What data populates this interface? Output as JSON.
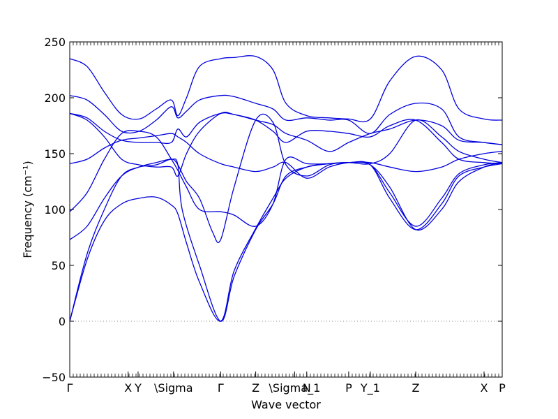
{
  "chart_data": {
    "type": "line",
    "title": "",
    "xlabel": "Wave vector",
    "ylabel": "Frequency (cm⁻¹)",
    "ylim": [
      -50,
      250
    ],
    "yticks": [
      -50,
      0,
      50,
      100,
      150,
      200,
      250
    ],
    "xlim": [
      0,
      1
    ],
    "grid": false,
    "legend": "none",
    "line_color": "#0000dd",
    "zero_line_color": "#888888",
    "xticks": [
      {
        "label": "Γ",
        "x": 0.0
      },
      {
        "label": "X",
        "x": 0.135
      },
      {
        "label": "Y",
        "x": 0.158
      },
      {
        "label": "\\Sigma",
        "x": 0.24
      },
      {
        "label": "Γ",
        "x": 0.349
      },
      {
        "label": "Z",
        "x": 0.43
      },
      {
        "label": "\\Sigma_1",
        "x": 0.52
      },
      {
        "label": "N",
        "x": 0.548
      },
      {
        "label": "P",
        "x": 0.645
      },
      {
        "label": "Y_1",
        "x": 0.695
      },
      {
        "label": "Z",
        "x": 0.8
      },
      {
        "label": "X",
        "x": 0.958
      },
      {
        "label": "P",
        "x": 1.0
      }
    ],
    "series": [
      {
        "x": [
          0,
          0.04,
          0.08,
          0.12,
          0.16,
          0.2,
          0.235,
          0.25,
          0.26,
          0.3,
          0.349,
          0.38,
          0.43,
          0.47,
          0.5,
          0.548,
          0.6,
          0.645,
          0.695,
          0.74,
          0.8,
          0.86,
          0.9,
          0.958,
          1.0
        ],
        "y": [
          0,
          60,
          100,
          130,
          138,
          142,
          145,
          140,
          100,
          50,
          0,
          40,
          82,
          105,
          130,
          138,
          141,
          142,
          140,
          110,
          82,
          105,
          130,
          138,
          141
        ]
      },
      {
        "x": [
          0,
          0.04,
          0.08,
          0.12,
          0.16,
          0.2,
          0.235,
          0.25,
          0.27,
          0.3,
          0.349,
          0.38,
          0.43,
          0.47,
          0.5,
          0.548,
          0.6,
          0.645,
          0.695,
          0.74,
          0.8,
          0.86,
          0.9,
          0.958,
          1.0
        ],
        "y": [
          0,
          55,
          90,
          105,
          110,
          111,
          104,
          96,
          70,
          35,
          0,
          45,
          83,
          110,
          128,
          138,
          141,
          142,
          140,
          115,
          85,
          110,
          132,
          140,
          142
        ]
      },
      {
        "x": [
          0,
          0.04,
          0.08,
          0.12,
          0.16,
          0.2,
          0.235,
          0.25,
          0.27,
          0.3,
          0.33,
          0.349,
          0.38,
          0.43,
          0.47,
          0.5,
          0.548,
          0.6,
          0.645,
          0.695,
          0.74,
          0.8,
          0.86,
          0.9,
          0.958,
          1.0
        ],
        "y": [
          73,
          85,
          110,
          130,
          138,
          140,
          145,
          140,
          125,
          110,
          80,
          73,
          120,
          180,
          178,
          140,
          130,
          140,
          142,
          140,
          120,
          82,
          100,
          125,
          138,
          142
        ]
      },
      {
        "x": [
          0,
          0.04,
          0.08,
          0.12,
          0.16,
          0.2,
          0.235,
          0.25,
          0.27,
          0.3,
          0.349,
          0.38,
          0.43,
          0.47,
          0.5,
          0.548,
          0.6,
          0.645,
          0.695,
          0.74,
          0.8,
          0.86,
          0.9,
          0.958,
          1.0
        ],
        "y": [
          98,
          115,
          145,
          168,
          170,
          165,
          145,
          135,
          120,
          100,
          98,
          95,
          85,
          105,
          145,
          141,
          141,
          142,
          141,
          150,
          180,
          165,
          152,
          145,
          142
        ]
      },
      {
        "x": [
          0,
          0.04,
          0.08,
          0.12,
          0.16,
          0.2,
          0.235,
          0.25,
          0.27,
          0.3,
          0.349,
          0.38,
          0.43,
          0.47,
          0.5,
          0.548,
          0.6,
          0.645,
          0.695,
          0.74,
          0.8,
          0.86,
          0.9,
          0.958,
          1.0
        ],
        "y": [
          141,
          145,
          155,
          162,
          164,
          166,
          168,
          165,
          160,
          150,
          141,
          138,
          134,
          138,
          142,
          128,
          138,
          142,
          142,
          138,
          134,
          138,
          145,
          150,
          152
        ]
      },
      {
        "x": [
          0,
          0.04,
          0.08,
          0.12,
          0.16,
          0.2,
          0.235,
          0.25,
          0.27,
          0.3,
          0.349,
          0.38,
          0.43,
          0.47,
          0.5,
          0.548,
          0.6,
          0.645,
          0.695,
          0.74,
          0.8,
          0.86,
          0.9,
          0.958,
          1.0
        ],
        "y": [
          186,
          180,
          165,
          145,
          140,
          138,
          138,
          130,
          150,
          170,
          186,
          185,
          180,
          170,
          160,
          170,
          170,
          168,
          165,
          175,
          180,
          160,
          145,
          142,
          141
        ]
      },
      {
        "x": [
          0,
          0.04,
          0.08,
          0.12,
          0.16,
          0.2,
          0.235,
          0.25,
          0.27,
          0.3,
          0.349,
          0.38,
          0.43,
          0.47,
          0.5,
          0.548,
          0.6,
          0.645,
          0.695,
          0.74,
          0.8,
          0.86,
          0.9,
          0.958,
          1.0
        ],
        "y": [
          186,
          182,
          170,
          162,
          160,
          160,
          160,
          172,
          165,
          178,
          186,
          185,
          180,
          176,
          168,
          162,
          152,
          160,
          168,
          172,
          180,
          175,
          162,
          160,
          158
        ]
      },
      {
        "x": [
          0,
          0.04,
          0.08,
          0.12,
          0.16,
          0.2,
          0.235,
          0.25,
          0.27,
          0.3,
          0.349,
          0.38,
          0.43,
          0.47,
          0.5,
          0.548,
          0.6,
          0.645,
          0.695,
          0.74,
          0.8,
          0.86,
          0.9,
          0.958,
          1.0
        ],
        "y": [
          202,
          198,
          185,
          170,
          170,
          180,
          192,
          182,
          188,
          198,
          202,
          201,
          195,
          190,
          180,
          182,
          180,
          180,
          168,
          185,
          195,
          190,
          165,
          160,
          158
        ]
      },
      {
        "x": [
          0,
          0.04,
          0.08,
          0.12,
          0.16,
          0.2,
          0.235,
          0.25,
          0.27,
          0.3,
          0.349,
          0.38,
          0.43,
          0.47,
          0.5,
          0.548,
          0.6,
          0.645,
          0.695,
          0.74,
          0.8,
          0.86,
          0.9,
          0.958,
          1.0
        ],
        "y": [
          235,
          228,
          205,
          185,
          181,
          190,
          198,
          184,
          200,
          228,
          235,
          236,
          237,
          225,
          195,
          184,
          182,
          181,
          181,
          215,
          237,
          225,
          190,
          181,
          180
        ]
      }
    ]
  }
}
